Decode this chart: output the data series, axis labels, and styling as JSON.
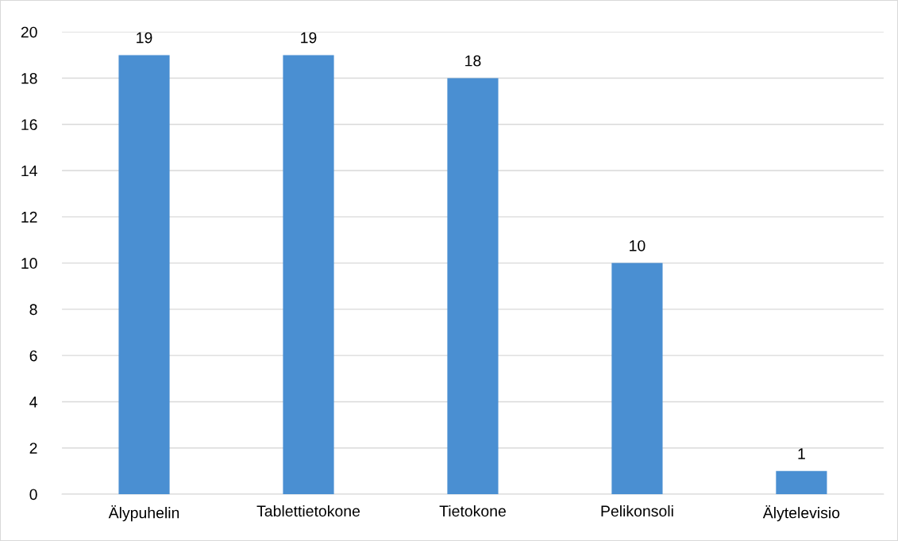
{
  "chart_data": {
    "type": "bar",
    "categories": [
      "Älypuhelin",
      "Tablettietokone",
      "Tietokone",
      "Pelikonsoli",
      "Älytelevisio"
    ],
    "values": [
      19,
      19,
      18,
      10,
      1
    ],
    "color": "#4a8fd2",
    "ylim": [
      0,
      20
    ],
    "yticks": [
      0,
      2,
      4,
      6,
      8,
      10,
      12,
      14,
      16,
      18,
      20
    ],
    "grid": "y",
    "data_labels": true,
    "legend": false
  }
}
